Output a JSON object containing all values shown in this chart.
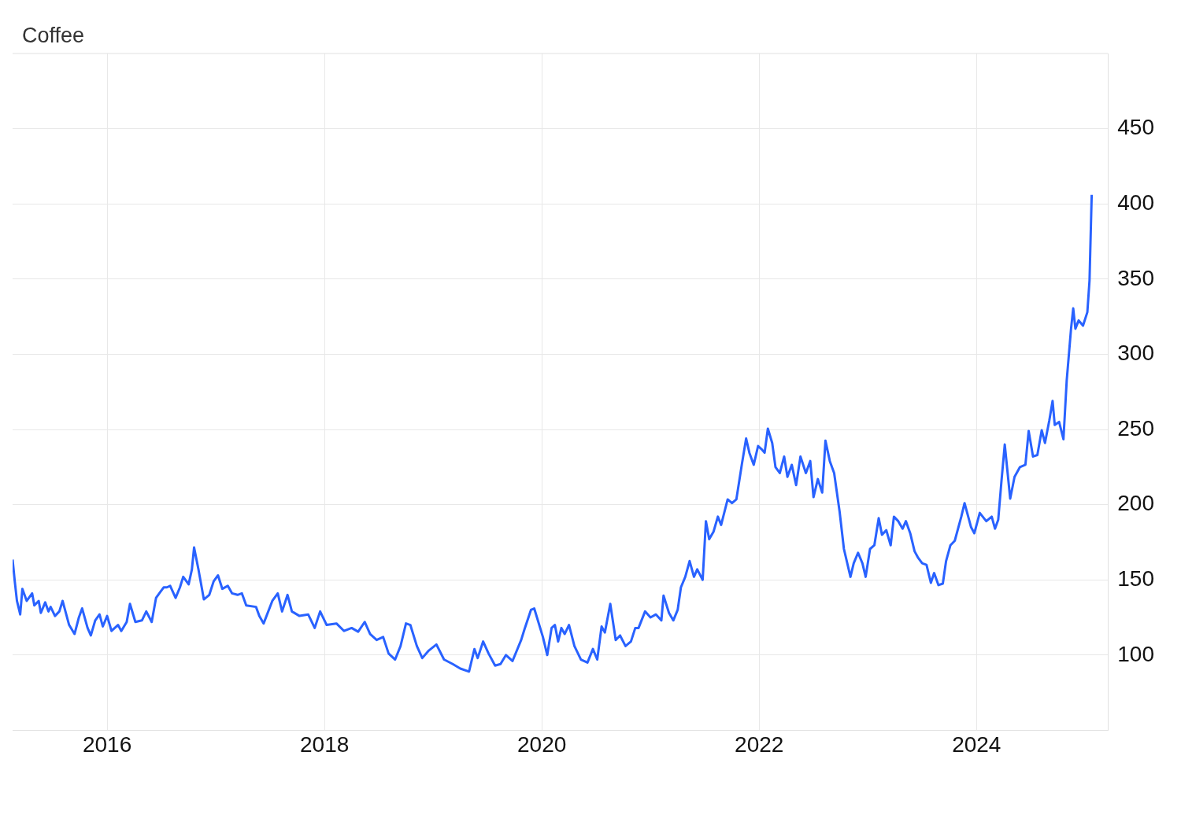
{
  "chart_data": {
    "type": "line",
    "title": "Coffee",
    "color": "#2962ff",
    "grid": true,
    "marker": "none",
    "line_style": "solid",
    "xlim": [
      2015.13,
      2025.21
    ],
    "xticks": [
      2016,
      2018,
      2020,
      2022,
      2024
    ],
    "ylim": [
      50,
      500
    ],
    "yticks": [
      100,
      150,
      200,
      250,
      300,
      350,
      400,
      450
    ],
    "x": [
      2015.13,
      2015.15,
      2015.17,
      2015.2,
      2015.22,
      2015.26,
      2015.31,
      2015.33,
      2015.37,
      2015.39,
      2015.43,
      2015.46,
      2015.48,
      2015.52,
      2015.56,
      2015.59,
      2015.65,
      2015.7,
      2015.74,
      2015.77,
      2015.82,
      2015.85,
      2015.89,
      2015.93,
      2015.96,
      2016.0,
      2016.04,
      2016.1,
      2016.13,
      2016.18,
      2016.21,
      2016.26,
      2016.32,
      2016.36,
      2016.41,
      2016.45,
      2016.48,
      2016.52,
      2016.55,
      2016.58,
      2016.63,
      2016.67,
      2016.7,
      2016.75,
      2016.78,
      2016.8,
      2016.84,
      2016.89,
      2016.94,
      2016.98,
      2017.02,
      2017.06,
      2017.11,
      2017.15,
      2017.2,
      2017.24,
      2017.28,
      2017.37,
      2017.4,
      2017.44,
      2017.52,
      2017.57,
      2017.61,
      2017.66,
      2017.7,
      2017.77,
      2017.85,
      2017.91,
      2017.96,
      2018.02,
      2018.11,
      2018.18,
      2018.25,
      2018.31,
      2018.37,
      2018.42,
      2018.48,
      2018.54,
      2018.59,
      2018.65,
      2018.7,
      2018.75,
      2018.79,
      2018.85,
      2018.9,
      2018.96,
      2019.03,
      2019.1,
      2019.18,
      2019.25,
      2019.33,
      2019.38,
      2019.41,
      2019.46,
      2019.51,
      2019.57,
      2019.62,
      2019.67,
      2019.73,
      2019.81,
      2019.84,
      2019.9,
      2019.93,
      2020.01,
      2020.05,
      2020.09,
      2020.12,
      2020.15,
      2020.18,
      2020.21,
      2020.25,
      2020.3,
      2020.36,
      2020.42,
      2020.47,
      2020.51,
      2020.55,
      2020.58,
      2020.63,
      2020.68,
      2020.72,
      2020.77,
      2020.82,
      2020.86,
      2020.89,
      2020.95,
      2021.0,
      2021.05,
      2021.1,
      2021.12,
      2021.17,
      2021.21,
      2021.25,
      2021.28,
      2021.32,
      2021.36,
      2021.4,
      2021.43,
      2021.48,
      2021.51,
      2021.54,
      2021.58,
      2021.62,
      2021.65,
      2021.71,
      2021.75,
      2021.79,
      2021.84,
      2021.88,
      2021.91,
      2021.95,
      2021.99,
      2022.02,
      2022.05,
      2022.08,
      2022.12,
      2022.15,
      2022.19,
      2022.23,
      2022.26,
      2022.3,
      2022.34,
      2022.38,
      2022.43,
      2022.47,
      2022.5,
      2022.54,
      2022.58,
      2022.61,
      2022.65,
      2022.69,
      2022.74,
      2022.78,
      2022.84,
      2022.87,
      2022.91,
      2022.95,
      2022.98,
      2023.02,
      2023.06,
      2023.1,
      2023.13,
      2023.17,
      2023.21,
      2023.24,
      2023.28,
      2023.32,
      2023.35,
      2023.39,
      2023.43,
      2023.46,
      2023.5,
      2023.54,
      2023.58,
      2023.61,
      2023.65,
      2023.69,
      2023.72,
      2023.76,
      2023.8,
      2023.86,
      2023.89,
      2023.95,
      2023.98,
      2024.03,
      2024.09,
      2024.14,
      2024.17,
      2024.2,
      2024.23,
      2024.26,
      2024.31,
      2024.35,
      2024.4,
      2024.45,
      2024.48,
      2024.52,
      2024.56,
      2024.6,
      2024.63,
      2024.67,
      2024.7,
      2024.72,
      2024.76,
      2024.8,
      2024.83,
      2024.87,
      2024.89,
      2024.91,
      2024.94,
      2024.98,
      2025.02,
      2025.04,
      2025.06
    ],
    "values": [
      163.5,
      149,
      136,
      127,
      144,
      136,
      141,
      133,
      136,
      128,
      135,
      129,
      132,
      126,
      129,
      136,
      120,
      114,
      125,
      131,
      118,
      113,
      123,
      127,
      119,
      126,
      116,
      120,
      116,
      122,
      134,
      122,
      123,
      129,
      122,
      138,
      141,
      145,
      145,
      146,
      138,
      145,
      152,
      147,
      157,
      171.5,
      157,
      137,
      140,
      149,
      153,
      144,
      146,
      141,
      140,
      141,
      133,
      132,
      126,
      121,
      136,
      141,
      129,
      140,
      129,
      126,
      127,
      118,
      129,
      120,
      121,
      116,
      118,
      115.5,
      122,
      114,
      110,
      112,
      101,
      97,
      106,
      121,
      120,
      106,
      98,
      103,
      107,
      97,
      94,
      91,
      89,
      104,
      98,
      109,
      101,
      93,
      94,
      100,
      96,
      110,
      117,
      130,
      131,
      112,
      100,
      118,
      120,
      109,
      118,
      114,
      120,
      106,
      97,
      95,
      104,
      97,
      119,
      115,
      134,
      110,
      113,
      106,
      109,
      118,
      118,
      129,
      125,
      127,
      123,
      139.5,
      128,
      123,
      130,
      145,
      152,
      162.5,
      152,
      157,
      150,
      189,
      177,
      182,
      192,
      186.5,
      203.5,
      201,
      203.5,
      226.5,
      244,
      234.5,
      226.5,
      239,
      237,
      234.5,
      250.5,
      241,
      225,
      221,
      232,
      218.5,
      226.5,
      213,
      232,
      221,
      229,
      205,
      217,
      208,
      242.5,
      229,
      221,
      195.5,
      170.5,
      152,
      161,
      168,
      161,
      152,
      170.5,
      173,
      191,
      180,
      183,
      173,
      192,
      189,
      184,
      189,
      181,
      169,
      165,
      161,
      160,
      148,
      154.5,
      146.5,
      147.5,
      162.5,
      173,
      176,
      192,
      201,
      185,
      181,
      194.5,
      189,
      192,
      184,
      190,
      216,
      240,
      204,
      218.5,
      225,
      226.5,
      249,
      232,
      233,
      249.5,
      241,
      256,
      269,
      253,
      255,
      243.5,
      282.5,
      317,
      330.5,
      317,
      322.5,
      319,
      328,
      349,
      406
    ]
  }
}
